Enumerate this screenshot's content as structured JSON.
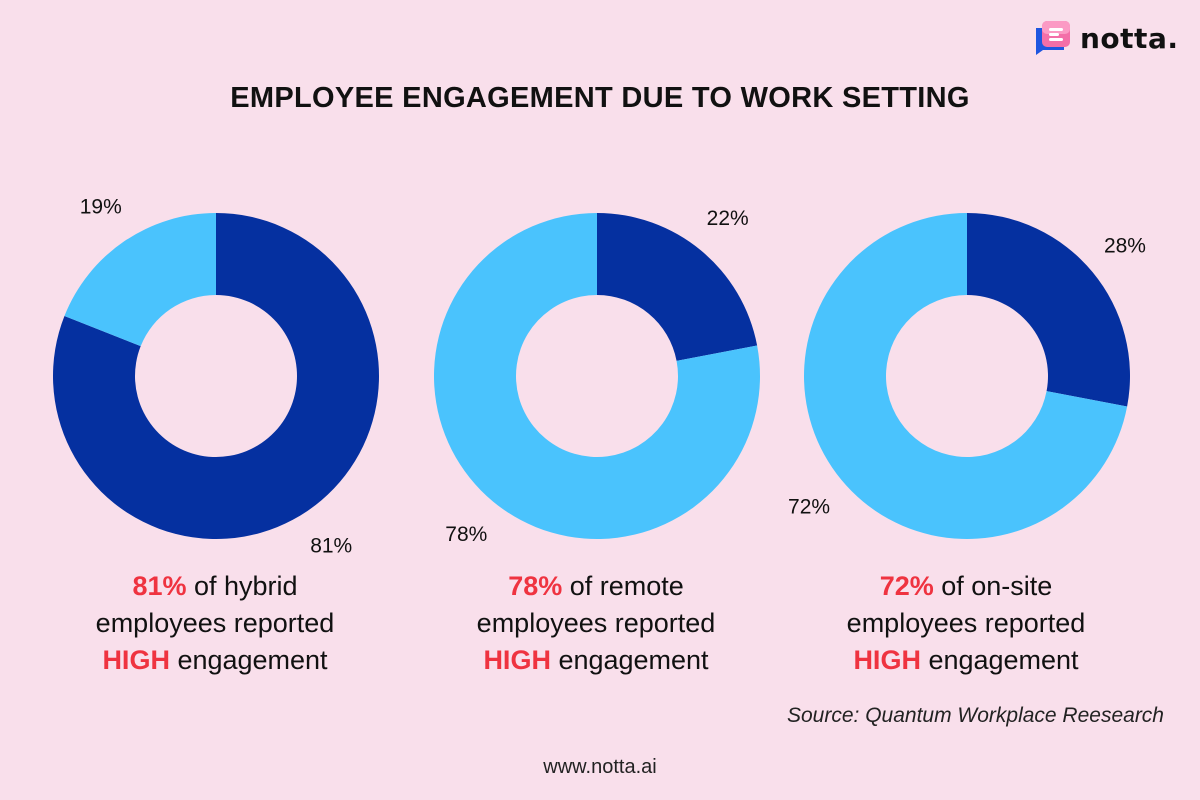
{
  "brand": {
    "name": "notta."
  },
  "title": "EMPLOYEE ENGAGEMENT DUE TO WORK SETTING",
  "colors": {
    "dark": "#0530a0",
    "light": "#4ac3fd",
    "highlight": "#ef3340",
    "background": "#f9dfeb"
  },
  "chart_data": [
    {
      "type": "pie",
      "name": "Hybrid",
      "slices": [
        {
          "label": "81%",
          "value": 81,
          "color": "#0530a0"
        },
        {
          "label": "19%",
          "value": 19,
          "color": "#4ac3fd"
        }
      ]
    },
    {
      "type": "pie",
      "name": "Remote",
      "slices": [
        {
          "label": "22%",
          "value": 22,
          "color": "#0530a0"
        },
        {
          "label": "78%",
          "value": 78,
          "color": "#4ac3fd"
        }
      ]
    },
    {
      "type": "pie",
      "name": "On-site",
      "slices": [
        {
          "label": "28%",
          "value": 28,
          "color": "#0530a0"
        },
        {
          "label": "72%",
          "value": 72,
          "color": "#4ac3fd"
        }
      ]
    }
  ],
  "captions": [
    {
      "pct": "81%",
      "line1_rest": " of hybrid",
      "line2": "employees reported",
      "high": "HIGH",
      "line3_rest": " engagement"
    },
    {
      "pct": "78%",
      "line1_rest": " of remote",
      "line2": "employees reported",
      "high": "HIGH",
      "line3_rest": " engagement"
    },
    {
      "pct": "72%",
      "line1_rest": " of on-site",
      "line2": "employees reported",
      "high": "HIGH",
      "line3_rest": " engagement"
    }
  ],
  "source": "Source: Quantum Workplace Reesearch",
  "footer": "www.notta.ai"
}
